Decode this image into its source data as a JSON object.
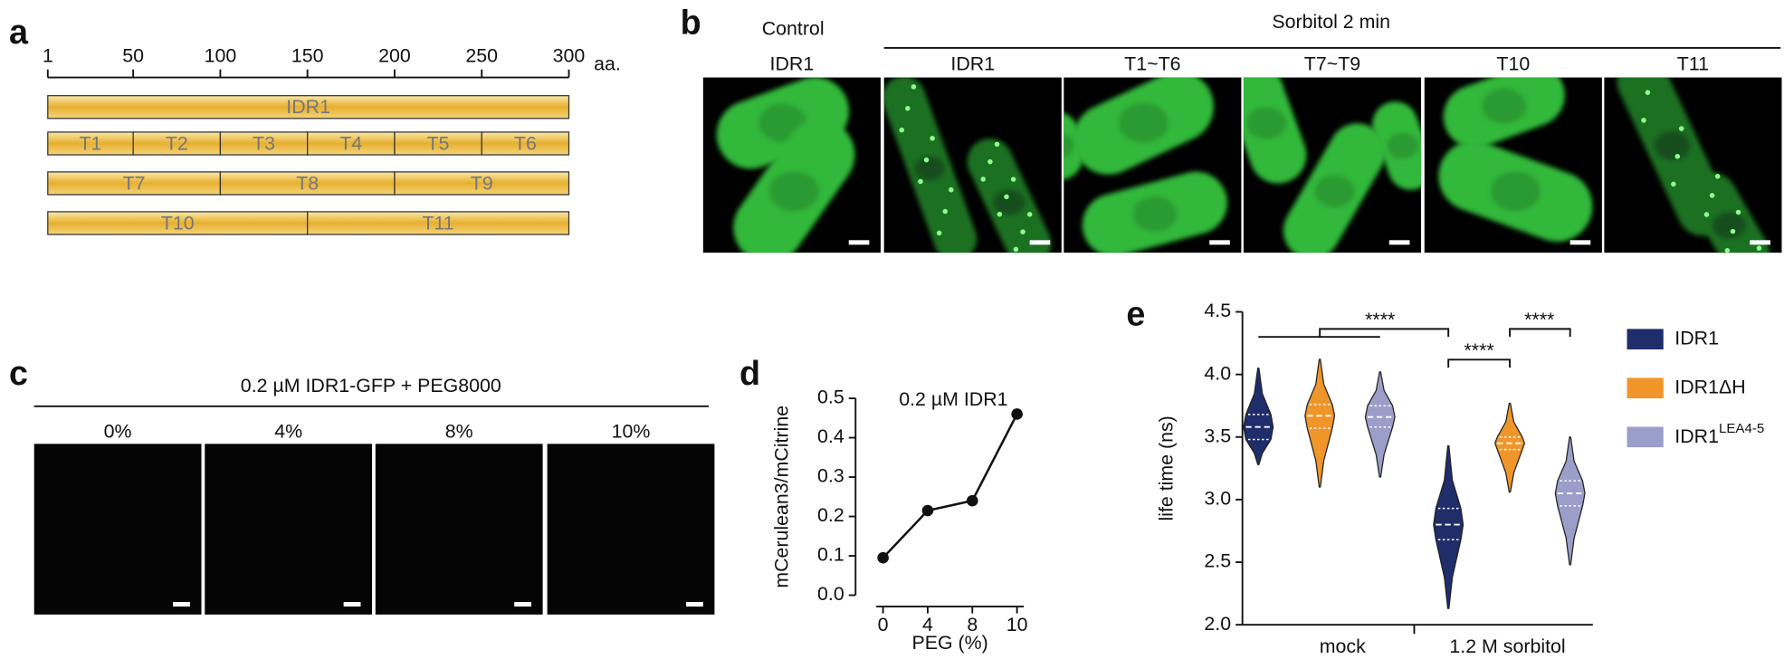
{
  "panel_labels": [
    "a",
    "b",
    "c",
    "d",
    "e"
  ],
  "panel_a": {
    "axis_ticks": [
      1,
      50,
      100,
      150,
      200,
      250,
      300
    ],
    "axis_unit": "aa.",
    "constructs": [
      {
        "segments": [
          {
            "label": "IDR1",
            "start": 1,
            "end": 300
          }
        ]
      },
      {
        "segments": [
          {
            "label": "T1",
            "start": 1,
            "end": 50
          },
          {
            "label": "T2",
            "start": 50,
            "end": 100
          },
          {
            "label": "T3",
            "start": 100,
            "end": 150
          },
          {
            "label": "T4",
            "start": 150,
            "end": 200
          },
          {
            "label": "T5",
            "start": 200,
            "end": 250
          },
          {
            "label": "T6",
            "start": 250,
            "end": 300
          }
        ]
      },
      {
        "segments": [
          {
            "label": "T7",
            "start": 1,
            "end": 100
          },
          {
            "label": "T8",
            "start": 100,
            "end": 200
          },
          {
            "label": "T9",
            "start": 200,
            "end": 300
          }
        ]
      },
      {
        "segments": [
          {
            "label": "T10",
            "start": 1,
            "end": 150
          },
          {
            "label": "T11",
            "start": 150,
            "end": 300
          }
        ]
      }
    ]
  },
  "panel_b": {
    "control_header": "Control",
    "sorbitol_header": "Sorbitol 2 min",
    "columns": [
      "IDR1",
      "IDR1",
      "T1~T6",
      "T7~T9",
      "T10",
      "T11"
    ]
  },
  "panel_c": {
    "title": "0.2 µM IDR1-GFP + PEG8000",
    "columns": [
      "0%",
      "4%",
      "8%",
      "10%"
    ]
  },
  "chart_data": [
    {
      "type": "line",
      "title": "0.2 µM IDR1",
      "xlabel": "PEG (%)",
      "ylabel": "mCerulean3/mCitrine",
      "categories": [
        "0",
        "4",
        "8",
        "10"
      ],
      "values": [
        0.095,
        0.215,
        0.24,
        0.46
      ],
      "color": "#111111",
      "ylim": [
        0,
        0.5
      ],
      "yticks": [
        {
          "value": 0,
          "label": "0.0"
        },
        {
          "value": 0.1,
          "label": "0.1"
        },
        {
          "value": 0.2,
          "label": "0.2"
        },
        {
          "value": 0.3,
          "label": "0.3"
        },
        {
          "value": 0.4,
          "label": "0.4"
        },
        {
          "value": 0.5,
          "label": "0.5"
        }
      ]
    },
    {
      "type": "violin",
      "ylabel": "life time (ns)",
      "categories": [
        "mock",
        "1.2 M sorbitol"
      ],
      "ylim": [
        2.0,
        4.5
      ],
      "yticks": [
        {
          "value": 2.0,
          "label": "2.0"
        },
        {
          "value": 2.5,
          "label": "2.5"
        },
        {
          "value": 3.0,
          "label": "3.0"
        },
        {
          "value": 3.5,
          "label": "3.5"
        },
        {
          "value": 4.0,
          "label": "4.0"
        },
        {
          "value": 4.5,
          "label": "4.5"
        }
      ],
      "series": [
        {
          "name": "IDR1",
          "color": "#1f2d6b",
          "values": [
            3.58,
            2.8
          ],
          "min": [
            3.28,
            2.13
          ],
          "q1": [
            3.48,
            2.68
          ],
          "q3": [
            3.68,
            2.93
          ],
          "max": [
            4.05,
            3.43
          ]
        },
        {
          "name": "IDR1ΔH",
          "color": "#f0952a",
          "values": [
            3.67,
            3.45
          ],
          "min": [
            3.1,
            3.06
          ],
          "q1": [
            3.57,
            3.4
          ],
          "q3": [
            3.76,
            3.5
          ],
          "max": [
            4.12,
            3.77
          ]
        },
        {
          "name": "IDR1",
          "name_sup": "LEA4-5",
          "color": "#9a9ec8",
          "values": [
            3.66,
            3.05
          ],
          "min": [
            3.18,
            2.48
          ],
          "q1": [
            3.58,
            2.95
          ],
          "q3": [
            3.75,
            3.15
          ],
          "max": [
            4.02,
            3.5
          ]
        }
      ],
      "significance": [
        "****",
        "****",
        "****"
      ]
    }
  ]
}
